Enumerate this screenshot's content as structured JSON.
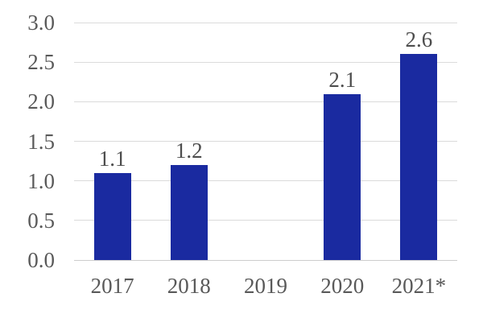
{
  "chart_data": {
    "type": "bar",
    "title": "",
    "xlabel": "",
    "ylabel": "",
    "categories": [
      "2017",
      "2018",
      "2019",
      "2020",
      "2021*"
    ],
    "values": [
      1.1,
      1.2,
      null,
      2.1,
      2.6
    ],
    "value_labels": [
      "1.1",
      "1.2",
      "",
      "2.1",
      "2.6"
    ],
    "ylim": [
      0,
      3
    ],
    "y_tick_step": 0.5,
    "y_tick_labels": [
      "0.0",
      "0.5",
      "1.0",
      "1.5",
      "2.0",
      "2.5",
      "3.0"
    ],
    "grid": "horizontal",
    "legend": "none",
    "colors": {
      "bar": "#1A2AA0",
      "gridline": "#DBDBDB",
      "axis_line": "#CDCDCD",
      "axis_tick_label": "#595959",
      "data_label": "#4D4D4D",
      "background": "#FFFFFF"
    }
  }
}
